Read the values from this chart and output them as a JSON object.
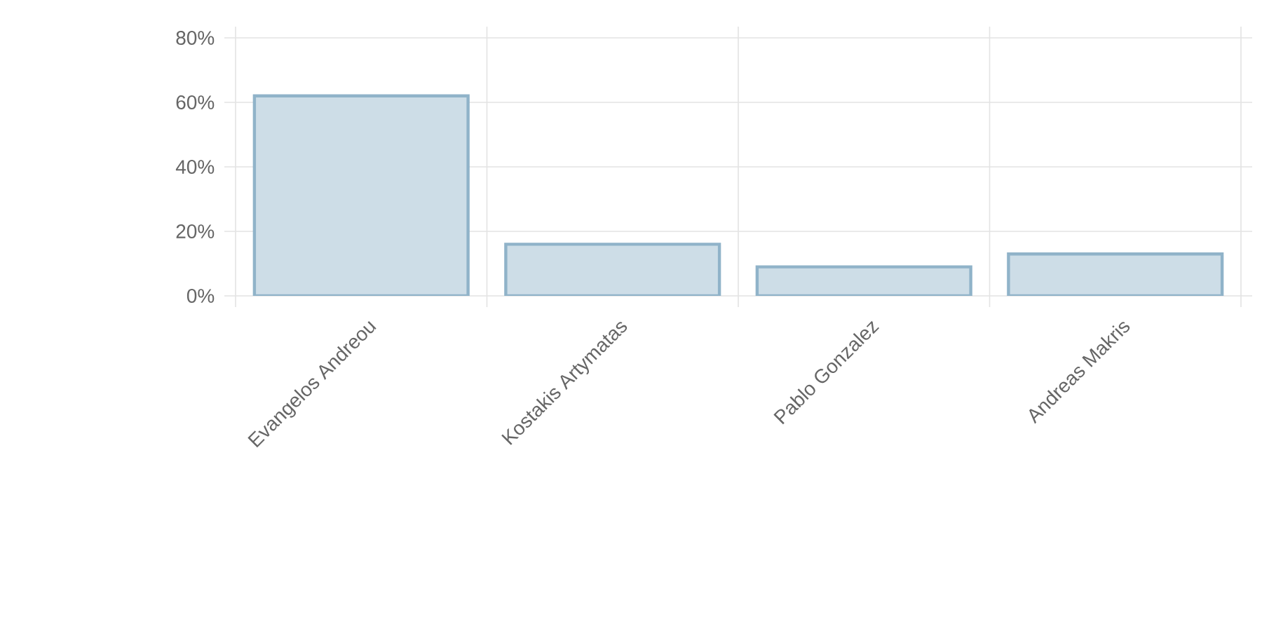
{
  "chart_data": {
    "type": "bar",
    "categories": [
      "Evangelos Andreou",
      "Kostakis Artymatas",
      "Pablo Gonzalez",
      "Andreas Makris"
    ],
    "values": [
      62,
      16,
      9,
      13
    ],
    "color": "#cddde7",
    "ylim": [
      0,
      80
    ],
    "yticks": [
      {
        "value": 0,
        "label": "0%"
      },
      {
        "value": 20,
        "label": "20%"
      },
      {
        "value": 40,
        "label": "40%"
      },
      {
        "value": 60,
        "label": "60%"
      },
      {
        "value": 80,
        "label": "80%"
      }
    ],
    "grid": true
  }
}
